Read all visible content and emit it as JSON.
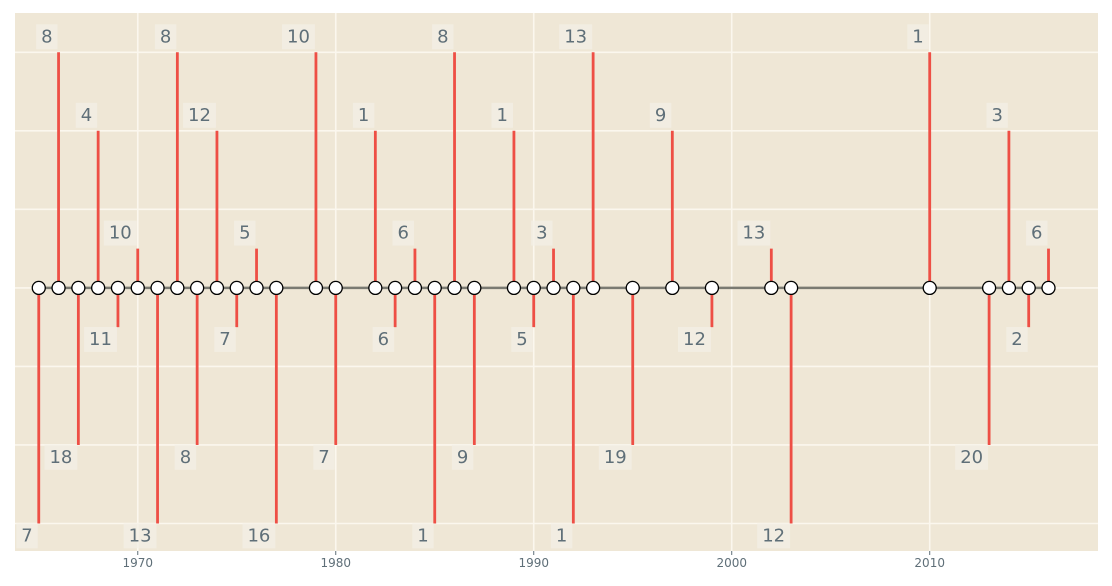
{
  "chart_data": {
    "type": "timeline",
    "title": "",
    "xlabel": "",
    "ylabel": "",
    "xlim": [
      1963.8,
      2018.5
    ],
    "ylim": [
      -6.7,
      7.0
    ],
    "grid": true,
    "x_ticks": [
      "1970",
      "1980",
      "1990",
      "2000",
      "2010"
    ],
    "events": [
      {
        "year": 1965,
        "level": -6,
        "label": "7"
      },
      {
        "year": 1966,
        "level": 6,
        "label": "8"
      },
      {
        "year": 1967,
        "level": -4,
        "label": "18"
      },
      {
        "year": 1968,
        "level": 4,
        "label": "4"
      },
      {
        "year": 1969,
        "level": -1,
        "label": "11"
      },
      {
        "year": 1970,
        "level": 1,
        "label": "10"
      },
      {
        "year": 1971,
        "level": -6,
        "label": "13"
      },
      {
        "year": 1972,
        "level": 6,
        "label": "8"
      },
      {
        "year": 1973,
        "level": -4,
        "label": "8"
      },
      {
        "year": 1974,
        "level": 4,
        "label": "12"
      },
      {
        "year": 1975,
        "level": -1,
        "label": "7"
      },
      {
        "year": 1976,
        "level": 1,
        "label": "5"
      },
      {
        "year": 1977,
        "level": -6,
        "label": "16"
      },
      {
        "year": 1979,
        "level": 6,
        "label": "10"
      },
      {
        "year": 1980,
        "level": -4,
        "label": "7"
      },
      {
        "year": 1982,
        "level": 4,
        "label": "1"
      },
      {
        "year": 1983,
        "level": -1,
        "label": "6"
      },
      {
        "year": 1984,
        "level": 1,
        "label": "6"
      },
      {
        "year": 1985,
        "level": -6,
        "label": "1"
      },
      {
        "year": 1986,
        "level": 6,
        "label": "8"
      },
      {
        "year": 1987,
        "level": -4,
        "label": "9"
      },
      {
        "year": 1989,
        "level": 4,
        "label": "1"
      },
      {
        "year": 1990,
        "level": -1,
        "label": "5"
      },
      {
        "year": 1991,
        "level": 1,
        "label": "3"
      },
      {
        "year": 1992,
        "level": -6,
        "label": "1"
      },
      {
        "year": 1993,
        "level": 6,
        "label": "13"
      },
      {
        "year": 1995,
        "level": -4,
        "label": "19"
      },
      {
        "year": 1997,
        "level": 4,
        "label": "9"
      },
      {
        "year": 1999,
        "level": -1,
        "label": "12"
      },
      {
        "year": 2002,
        "level": 1,
        "label": "13"
      },
      {
        "year": 2003,
        "level": -6,
        "label": "12"
      },
      {
        "year": 2010,
        "level": 6,
        "label": "1"
      },
      {
        "year": 2013,
        "level": -4,
        "label": "20"
      },
      {
        "year": 2014,
        "level": 4,
        "label": "3"
      },
      {
        "year": 2015,
        "level": -1,
        "label": "2"
      },
      {
        "year": 2016,
        "level": 1,
        "label": "6"
      }
    ],
    "colors": {
      "background": "#efe7d6",
      "grid": "#fbf7ee",
      "stem": "#ee4f45",
      "baseline": "#7a7a72",
      "marker_fill": "#ffffff",
      "marker_edge": "#000000",
      "label_text": "#5f6f78",
      "label_box": "#f3efe6",
      "tick_text": "#5f6f78"
    }
  }
}
